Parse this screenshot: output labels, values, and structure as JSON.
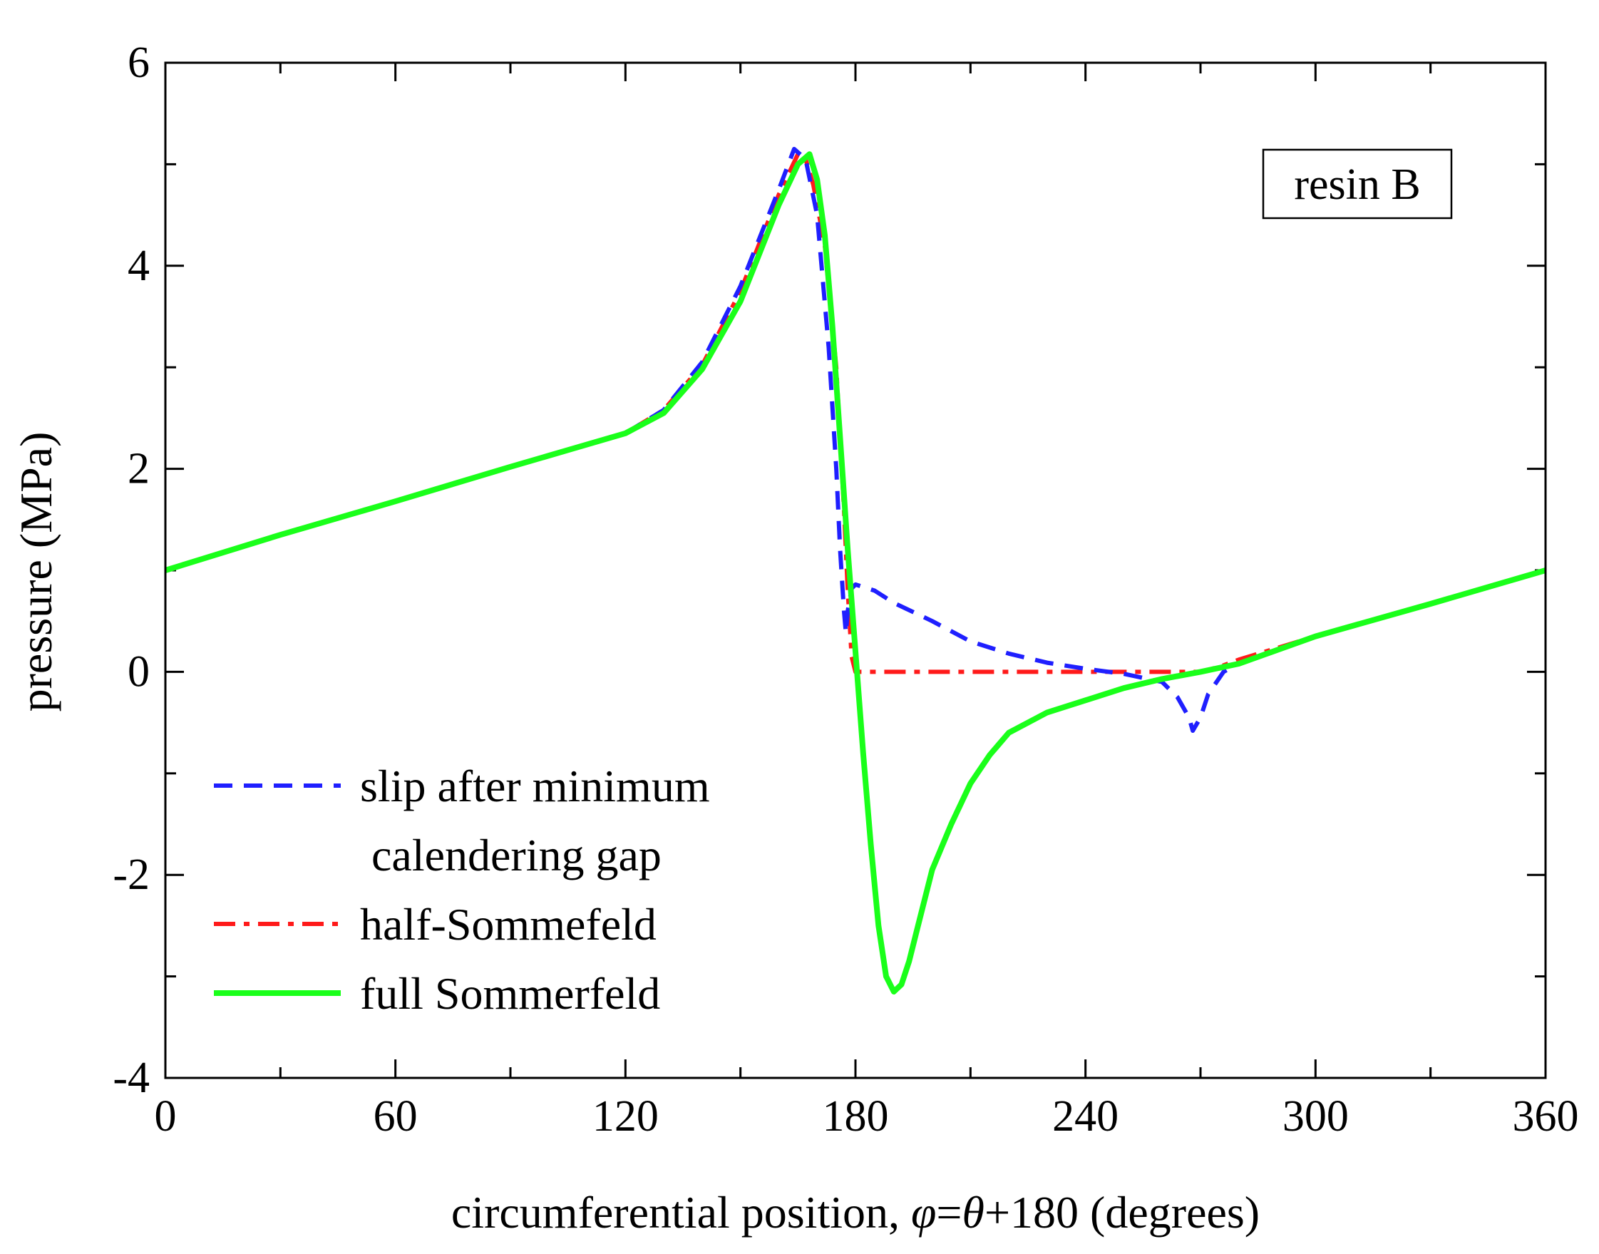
{
  "chart_data": {
    "type": "line",
    "xlabel": "circumferential position, φ=θ+180 (degrees)",
    "xlabel_parts": {
      "pre": "circumferential position, ",
      "phi": "φ",
      "eq": "=",
      "theta": "θ",
      "post": "+180 (degrees)"
    },
    "ylabel": "pressure (MPa)",
    "xlim": [
      0,
      360
    ],
    "ylim": [
      -4,
      6
    ],
    "x_ticks": [
      0,
      60,
      120,
      180,
      240,
      300,
      360
    ],
    "x_tick_labels": [
      "0",
      "60",
      "120",
      "180",
      "240",
      "300",
      "360"
    ],
    "y_ticks": [
      -4,
      -2,
      0,
      2,
      4,
      6
    ],
    "y_tick_labels": [
      "-4",
      "-2",
      "0",
      "2",
      "4",
      "6"
    ],
    "x_minor_step": 30,
    "y_minor_step": 1,
    "grid": false,
    "legend_position": "bottom-left",
    "annotation": "resin B",
    "series": [
      {
        "name": "slip after minimum calendering gap",
        "legend_lines": [
          "slip after minimum",
          "calendering gap"
        ],
        "color": "#1f1fff",
        "style": "dashed",
        "x": [
          0,
          30,
          60,
          90,
          120,
          130,
          140,
          150,
          160,
          164,
          167,
          170,
          173,
          175,
          176,
          177,
          177.5,
          178,
          179,
          180,
          185,
          190,
          200,
          210,
          220,
          230,
          240,
          250,
          260,
          264,
          267,
          268,
          270,
          272,
          276,
          280,
          300,
          330,
          360
        ],
        "y": [
          1.0,
          1.35,
          1.68,
          2.02,
          2.35,
          2.58,
          3.05,
          3.8,
          4.75,
          5.15,
          5.05,
          4.5,
          3.2,
          2.0,
          1.2,
          0.6,
          0.38,
          0.6,
          0.82,
          0.86,
          0.8,
          0.68,
          0.5,
          0.3,
          0.18,
          0.09,
          0.03,
          -0.02,
          -0.1,
          -0.25,
          -0.45,
          -0.58,
          -0.45,
          -0.22,
          0.0,
          0.08,
          0.35,
          0.67,
          1.0
        ]
      },
      {
        "name": "half-Sommefeld",
        "legend_lines": [
          "half-Sommefeld"
        ],
        "color": "#ff1a1a",
        "style": "dashdot",
        "x": [
          0,
          30,
          60,
          90,
          120,
          130,
          140,
          150,
          160,
          165,
          167,
          169,
          172,
          175,
          177,
          178,
          179,
          180,
          200,
          220,
          240,
          260,
          270,
          275,
          280,
          300,
          330,
          360
        ],
        "y": [
          1.0,
          1.35,
          1.68,
          2.02,
          2.35,
          2.58,
          3.02,
          3.75,
          4.7,
          5.1,
          5.05,
          4.8,
          4.2,
          3.0,
          1.6,
          0.8,
          0.15,
          0.0,
          0.0,
          0.0,
          0.0,
          0.0,
          0.0,
          0.05,
          0.12,
          0.35,
          0.67,
          1.0
        ]
      },
      {
        "name": "full Sommerfeld",
        "legend_lines": [
          "full Sommerfeld"
        ],
        "color": "#1aff1a",
        "style": "solid",
        "x": [
          0,
          30,
          60,
          90,
          120,
          130,
          140,
          150,
          160,
          165,
          168,
          170,
          172,
          174,
          176,
          178,
          180,
          182,
          184,
          186,
          188,
          190,
          192,
          194,
          196,
          200,
          205,
          210,
          215,
          220,
          230,
          240,
          250,
          260,
          270,
          280,
          300,
          330,
          360
        ],
        "y": [
          1.0,
          1.35,
          1.68,
          2.02,
          2.35,
          2.55,
          2.98,
          3.65,
          4.6,
          5.0,
          5.1,
          4.85,
          4.3,
          3.4,
          2.3,
          1.2,
          0.2,
          -0.8,
          -1.7,
          -2.5,
          -3.0,
          -3.15,
          -3.08,
          -2.85,
          -2.55,
          -1.95,
          -1.5,
          -1.1,
          -0.82,
          -0.6,
          -0.4,
          -0.28,
          -0.16,
          -0.07,
          0.0,
          0.08,
          0.35,
          0.67,
          1.0
        ]
      }
    ]
  }
}
